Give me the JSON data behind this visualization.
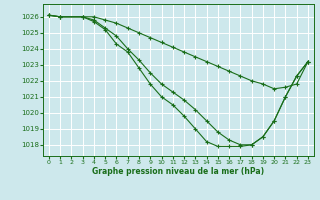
{
  "bg_color": "#cde8ec",
  "grid_color": "#ffffff",
  "line_color": "#1a6e1a",
  "xlabel": "Graphe pression niveau de la mer (hPa)",
  "xlim": [
    -0.5,
    23.5
  ],
  "ylim": [
    1017.3,
    1026.8
  ],
  "yticks": [
    1018,
    1019,
    1020,
    1021,
    1022,
    1023,
    1024,
    1025,
    1026
  ],
  "xticks": [
    0,
    1,
    2,
    3,
    4,
    5,
    6,
    7,
    8,
    9,
    10,
    11,
    12,
    13,
    14,
    15,
    16,
    17,
    18,
    19,
    20,
    21,
    22,
    23
  ],
  "series1_x": [
    0,
    1,
    3,
    4,
    5,
    6,
    7,
    8,
    9,
    10,
    11,
    12,
    13,
    14,
    15,
    16,
    17,
    18,
    19,
    20,
    21,
    22,
    23
  ],
  "series1_y": [
    1026.1,
    1026.0,
    1026.0,
    1026.0,
    1025.8,
    1025.6,
    1025.3,
    1025.0,
    1024.7,
    1024.4,
    1024.1,
    1023.8,
    1023.5,
    1023.2,
    1022.9,
    1022.6,
    1022.3,
    1022.0,
    1021.8,
    1021.5,
    1021.6,
    1021.8,
    1023.2
  ],
  "series2_x": [
    0,
    1,
    3,
    4,
    5,
    6,
    7,
    8,
    9,
    10,
    11,
    12,
    13,
    14,
    15,
    16,
    17,
    18,
    19,
    20,
    21,
    22,
    23
  ],
  "series2_y": [
    1026.1,
    1026.0,
    1026.0,
    1025.8,
    1025.3,
    1024.8,
    1024.0,
    1023.3,
    1022.5,
    1021.8,
    1021.3,
    1020.8,
    1020.2,
    1019.5,
    1018.8,
    1018.3,
    1018.0,
    1018.0,
    1018.5,
    1019.5,
    1021.0,
    1022.3,
    1023.2
  ],
  "series3_x": [
    0,
    1,
    3,
    4,
    5,
    6,
    7,
    8,
    9,
    10,
    11,
    12,
    13,
    14,
    15,
    16,
    17,
    18,
    19,
    20,
    21,
    22,
    23
  ],
  "series3_y": [
    1026.1,
    1026.0,
    1026.0,
    1025.7,
    1025.2,
    1024.3,
    1023.8,
    1022.8,
    1021.8,
    1021.0,
    1020.5,
    1019.8,
    1019.0,
    1018.2,
    1017.9,
    1017.9,
    1017.9,
    1018.0,
    1018.5,
    1019.5,
    1021.0,
    1022.3,
    1023.2
  ]
}
